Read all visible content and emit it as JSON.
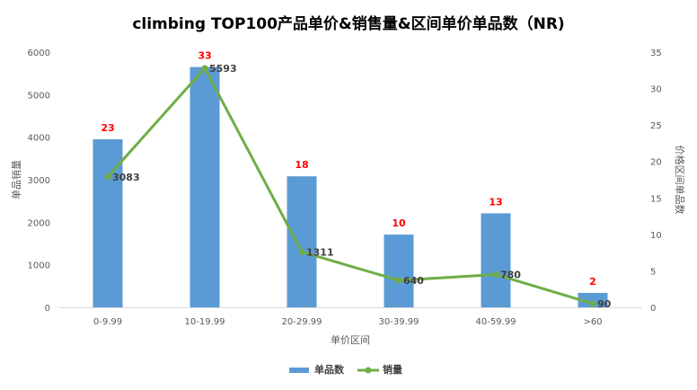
{
  "chart_data": {
    "type": "bar",
    "title": "climbing TOP100产品单价&销售量&区间单价单品数（NR)",
    "xlabel": "单价区间",
    "ylabel_left": "单品销量",
    "ylabel_right": "价格区间单品数",
    "categories": [
      "0-9.99",
      "10-19.99",
      "20-29.99",
      "30-39.99",
      "40-59.99",
      ">60"
    ],
    "left_axis": {
      "min": 0,
      "max": 6000,
      "step": 1000
    },
    "right_axis": {
      "min": 0,
      "max": 35,
      "step": 5
    },
    "series": [
      {
        "name": "单品数",
        "type": "bar",
        "axis": "left",
        "color": "#5b9bd5",
        "bar_values_left_scale": [
          3950,
          5650,
          3080,
          1710,
          2210,
          340
        ],
        "labels": [
          "23",
          "33",
          "18",
          "10",
          "13",
          "2"
        ]
      },
      {
        "name": "销量",
        "type": "line",
        "axis": "right",
        "color": "#70ad47",
        "line_values_right_scale": [
          17.9,
          32.8,
          7.6,
          3.7,
          4.5,
          0.5
        ],
        "labels": [
          "3083",
          "5593",
          "1311",
          "640",
          "780",
          "90"
        ]
      }
    ],
    "legend": {
      "position": "bottom",
      "entries": [
        "单品数",
        "销量"
      ]
    },
    "grid": false
  }
}
